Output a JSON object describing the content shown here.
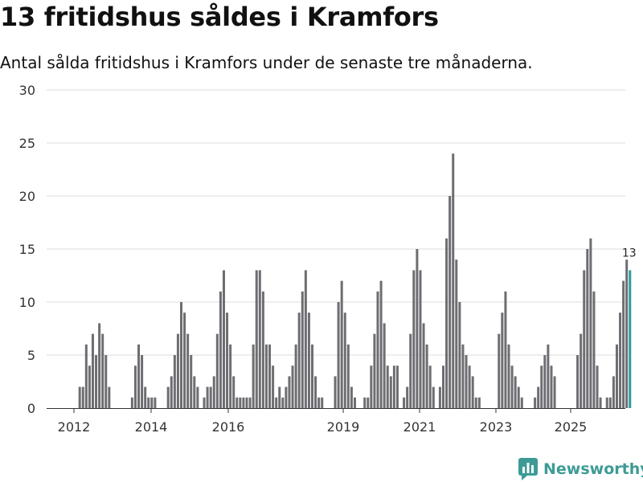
{
  "header": {
    "title": "13 fritidshus såldes i Kramfors",
    "subtitle": "Antal sålda fritidshus i Kramfors under de senaste tre månaderna."
  },
  "brand": {
    "name": "Newsworthy",
    "color": "#3d9b96"
  },
  "chart_data": {
    "type": "bar",
    "title": "13 fritidshus såldes i Kramfors",
    "subtitle": "Antal sålda fritidshus i Kramfors under de senaste tre månaderna.",
    "xlabel": "",
    "ylabel": "",
    "ylim": [
      0,
      30
    ],
    "yticks": [
      0,
      5,
      10,
      15,
      20,
      25,
      30
    ],
    "xtick_labels": [
      "2012",
      "2014",
      "2016",
      "2019",
      "2021",
      "2023",
      "2025"
    ],
    "grid": true,
    "bar_color": "#6d6d72",
    "highlight_color": "#2a9d99",
    "highlight_label": "13",
    "values": [
      0,
      0,
      0,
      0,
      0,
      0,
      0,
      0,
      0,
      2,
      2,
      6,
      4,
      7,
      5,
      8,
      7,
      5,
      2,
      0,
      0,
      0,
      0,
      0,
      0,
      1,
      4,
      6,
      5,
      2,
      1,
      1,
      1,
      0,
      0,
      0,
      2,
      3,
      5,
      7,
      10,
      9,
      7,
      5,
      3,
      2,
      0,
      1,
      2,
      2,
      3,
      7,
      11,
      13,
      9,
      6,
      3,
      1,
      1,
      1,
      1,
      1,
      6,
      13,
      13,
      11,
      6,
      6,
      4,
      1,
      2,
      1,
      2,
      3,
      4,
      6,
      9,
      11,
      13,
      9,
      6,
      3,
      1,
      1,
      0,
      0,
      0,
      3,
      10,
      12,
      9,
      6,
      2,
      1,
      0,
      0,
      1,
      1,
      4,
      7,
      11,
      12,
      8,
      4,
      3,
      4,
      4,
      0,
      1,
      2,
      7,
      13,
      15,
      13,
      8,
      6,
      4,
      2,
      0,
      2,
      4,
      16,
      20,
      24,
      14,
      10,
      6,
      5,
      4,
      3,
      1,
      1,
      0,
      0,
      0,
      0,
      0,
      7,
      9,
      11,
      6,
      4,
      3,
      2,
      1,
      0,
      0,
      0,
      1,
      2,
      4,
      5,
      6,
      4,
      3,
      0,
      0,
      0,
      0,
      0,
      0,
      5,
      7,
      13,
      15,
      16,
      11,
      4,
      1,
      0,
      1,
      1,
      3,
      6,
      9,
      12,
      14,
      13
    ]
  }
}
